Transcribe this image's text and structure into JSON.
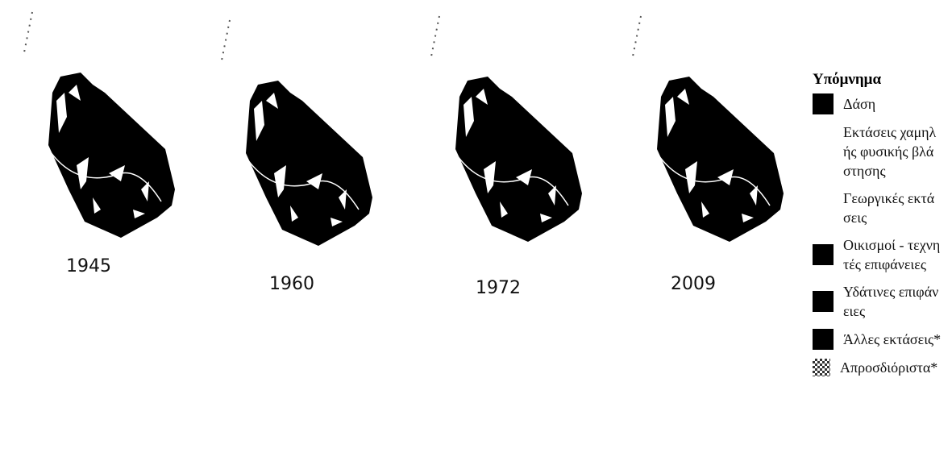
{
  "maps": [
    {
      "year": "1945"
    },
    {
      "year": "1960"
    },
    {
      "year": "1972"
    },
    {
      "year": "2009"
    }
  ],
  "legend": {
    "title": "Υπόμνημα",
    "items": [
      {
        "label": "Δάση",
        "swatch": "black"
      },
      {
        "label": "Εκτάσεις χαμηλής φυσικής βλάστησης",
        "swatch": "none"
      },
      {
        "label": "Γεωργικές εκτάσεις",
        "swatch": "none"
      },
      {
        "label": "Οικισμοί - τεχνητές επιφάνειες",
        "swatch": "black"
      },
      {
        "label": "Υδάτινες επιφάνειες",
        "swatch": "black"
      },
      {
        "label": "Άλλες εκτάσεις*",
        "swatch": "black"
      },
      {
        "label": "Απροσδιόριστα*",
        "swatch": "check"
      }
    ]
  }
}
